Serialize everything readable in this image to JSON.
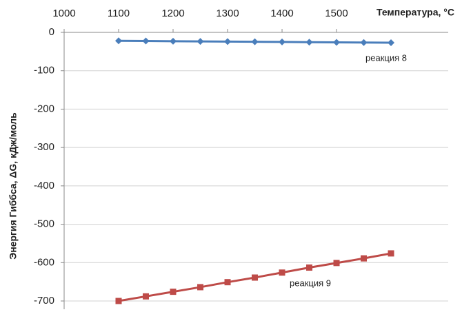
{
  "chart_data": {
    "type": "line",
    "x_label": "Температура, °С",
    "y_label": "Энергия Гиббса, ΔG, кДж/моль",
    "x": [
      1100,
      1150,
      1200,
      1250,
      1300,
      1350,
      1400,
      1450,
      1500,
      1550,
      1600
    ],
    "series": [
      {
        "name": "реакция 8",
        "color": "#4a7ebb",
        "marker": "diamond",
        "values": [
          -22,
          -22.5,
          -23,
          -23.5,
          -24,
          -24.5,
          -25,
          -25.5,
          -26,
          -26.5,
          -27
        ]
      },
      {
        "name": "реакция 9",
        "color": "#be4b48",
        "marker": "square",
        "values": [
          -700,
          -688,
          -676,
          -664,
          -651,
          -639,
          -626,
          -613,
          -601,
          -589,
          -576
        ]
      }
    ],
    "xlim": [
      1000,
      1705
    ],
    "xticks": [
      1000,
      1100,
      1200,
      1300,
      1400,
      1500
    ],
    "x_axis_position": "top",
    "ylim": [
      -700,
      0
    ],
    "yticks": [
      0,
      -100,
      -200,
      -300,
      -400,
      -500,
      -600,
      -700
    ],
    "grid": true
  }
}
